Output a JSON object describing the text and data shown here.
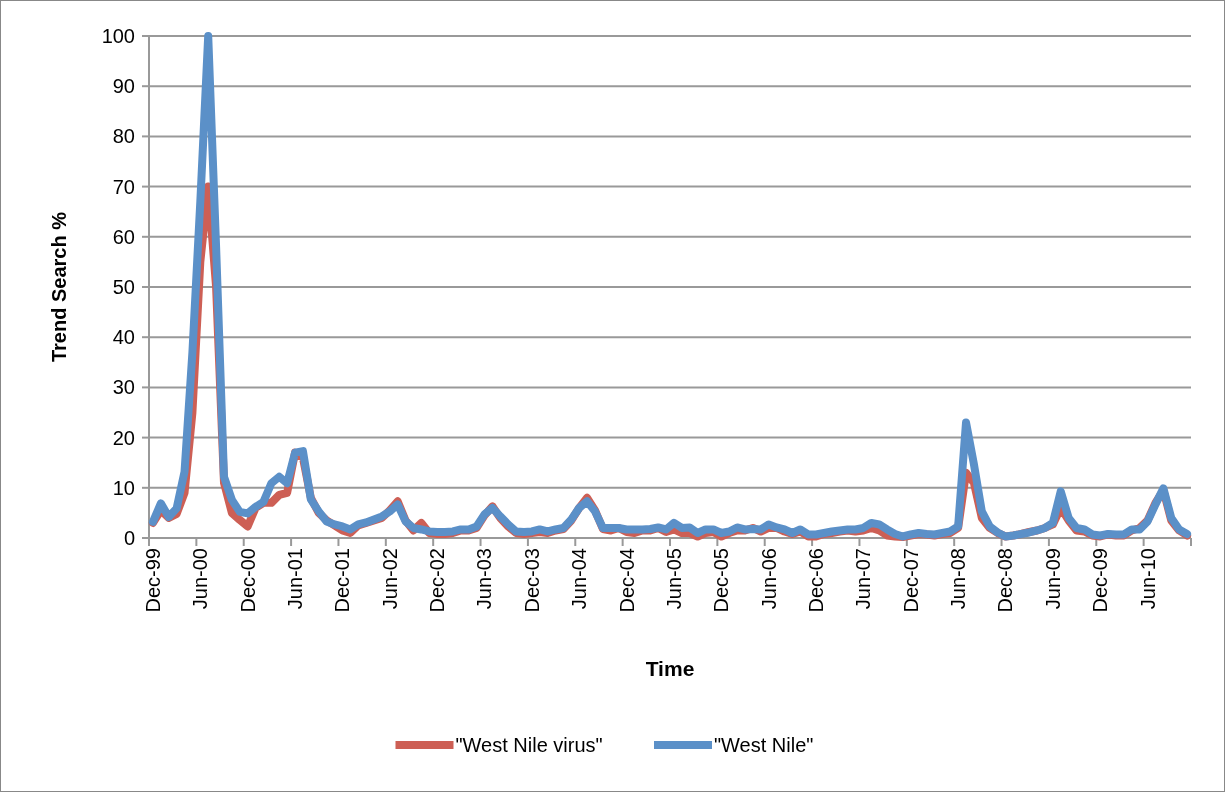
{
  "chart_data": {
    "type": "line",
    "xlabel": "Time",
    "ylabel": "Trend Search %",
    "categories": [
      "Dec-99",
      null,
      null,
      null,
      null,
      null,
      "Jun-00",
      null,
      null,
      null,
      null,
      null,
      "Dec-00",
      null,
      null,
      null,
      null,
      null,
      "Jun-01",
      null,
      null,
      null,
      null,
      null,
      "Dec-01",
      null,
      null,
      null,
      null,
      null,
      "Jun-02",
      null,
      null,
      null,
      null,
      null,
      "Dec-02",
      null,
      null,
      null,
      null,
      null,
      "Jun-03",
      null,
      null,
      null,
      null,
      null,
      "Dec-03",
      null,
      null,
      null,
      null,
      null,
      "Jun-04",
      null,
      null,
      null,
      null,
      null,
      "Dec-04",
      null,
      null,
      null,
      null,
      null,
      "Jun-05",
      null,
      null,
      null,
      null,
      null,
      "Dec-05",
      null,
      null,
      null,
      null,
      null,
      "Jun-06",
      null,
      null,
      null,
      null,
      null,
      "Dec-06",
      null,
      null,
      null,
      null,
      null,
      "Jun-07",
      null,
      null,
      null,
      null,
      null,
      "Dec-07",
      null,
      null,
      null,
      null,
      null,
      "Jun-08",
      null,
      null,
      null,
      null,
      null,
      "Dec-08",
      null,
      null,
      null,
      null,
      null,
      "Jun-09",
      null,
      null,
      null,
      null,
      null,
      "Dec-09",
      null,
      null,
      null,
      null,
      null,
      "Jun-10",
      null,
      null,
      null,
      null,
      null
    ],
    "series": [
      {
        "name": "\"West Nile virus\"",
        "color": "#cd5f55",
        "values": [
          3,
          5.5,
          4,
          4.8,
          9,
          25,
          55,
          70,
          50,
          11,
          5,
          3.6,
          2.3,
          6,
          7,
          7,
          8.6,
          9,
          17,
          16,
          8,
          5,
          3.5,
          2.5,
          1.5,
          1,
          2.5,
          3,
          3.5,
          4,
          5.5,
          7.3,
          3.5,
          1.5,
          3,
          1,
          0.8,
          0.8,
          1,
          1.5,
          1.5,
          2,
          4.5,
          6.3,
          4,
          2.3,
          1,
          0.8,
          1,
          1.2,
          1,
          1.5,
          1.8,
          3.5,
          6,
          8,
          5.5,
          1.8,
          1.5,
          2,
          1.2,
          1,
          1.5,
          1.5,
          2,
          1.2,
          1.7,
          1,
          1,
          0.3,
          1,
          1.2,
          0.3,
          1,
          1.5,
          1.5,
          2,
          1.3,
          2,
          2,
          1.3,
          0.8,
          1.3,
          0.3,
          0.3,
          0.8,
          1,
          1.3,
          1.5,
          1.3,
          1.5,
          2,
          1.5,
          0.5,
          0.3,
          0.2,
          0.5,
          0.8,
          0.7,
          0.5,
          0.8,
          1,
          2,
          13,
          11,
          4,
          2,
          1,
          0.3,
          0.5,
          0.8,
          1.2,
          1.5,
          2,
          2.7,
          6,
          3.5,
          1.5,
          1.3,
          0.5,
          0.3,
          0.7,
          0.5,
          0.5,
          1.5,
          2,
          3.5,
          7,
          9.5,
          3.5,
          1.5,
          0.5
        ]
      },
      {
        "name": "\"West Nile\"",
        "color": "#5b90c8",
        "values": [
          3.2,
          6.9,
          4.2,
          5.9,
          13.2,
          37,
          67,
          100,
          58,
          12.2,
          7.6,
          5.2,
          4.9,
          6.2,
          7.2,
          10.9,
          12.2,
          10.9,
          17,
          17.3,
          7.7,
          5.3,
          3.3,
          2.7,
          2.3,
          1.7,
          2.7,
          3.1,
          3.7,
          4.3,
          5.3,
          6.7,
          3.3,
          2,
          1.7,
          1.3,
          1.2,
          1.2,
          1.3,
          1.7,
          1.7,
          2.3,
          4.7,
          6,
          4.3,
          2.7,
          1.3,
          1.2,
          1.3,
          1.7,
          1.3,
          1.7,
          2,
          3.7,
          6,
          7.3,
          5.3,
          2,
          2,
          2,
          1.7,
          1.7,
          1.7,
          1.8,
          2.1,
          1.7,
          3,
          2,
          2.1,
          1,
          1.7,
          1.7,
          1,
          1.3,
          2.1,
          1.7,
          1.8,
          1.7,
          2.7,
          2.1,
          1.7,
          1,
          1.7,
          0.7,
          0.7,
          1,
          1.3,
          1.5,
          1.7,
          1.7,
          2,
          3,
          2.7,
          1.7,
          0.8,
          0.3,
          0.7,
          1,
          0.8,
          0.7,
          1,
          1.3,
          2.3,
          23,
          14.7,
          5.3,
          2.3,
          1.1,
          0.3,
          0.5,
          0.8,
          1.1,
          1.5,
          2,
          3,
          9.3,
          4,
          2,
          1.7,
          0.7,
          0.5,
          0.8,
          0.7,
          0.7,
          1.7,
          1.7,
          3.3,
          6.7,
          9.9,
          4,
          1.7,
          0.8
        ]
      }
    ],
    "ylim": [
      0,
      100
    ],
    "yticks": [
      0,
      10,
      20,
      30,
      40,
      50,
      60,
      70,
      80,
      90,
      100
    ],
    "grid": "y",
    "legend": "bottom",
    "marker": "none",
    "line_style": "solid"
  }
}
